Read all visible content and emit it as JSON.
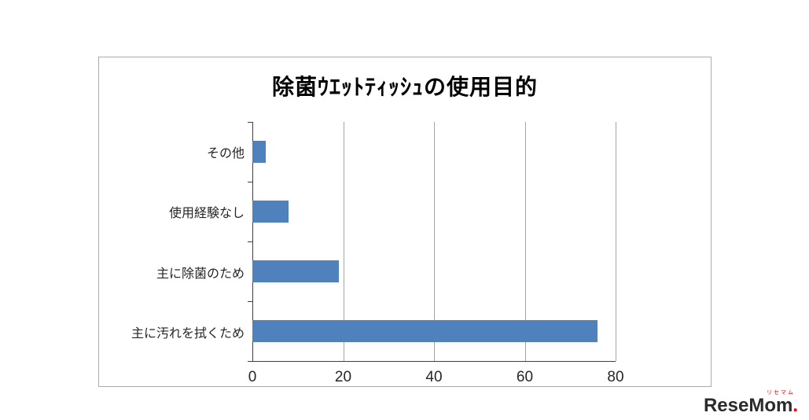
{
  "chart_data": {
    "type": "bar",
    "orientation": "horizontal",
    "title": "除菌ｳｴｯﾄﾃｨｯｼｭの使用目的",
    "categories": [
      "その他",
      "使用経験なし",
      "主に除菌のため",
      "主に汚れを拭くため"
    ],
    "values": [
      3,
      8,
      19,
      76
    ],
    "xlabel": "",
    "ylabel": "",
    "xlim": [
      0,
      80
    ],
    "xticks": [
      0,
      20,
      40,
      60,
      80
    ],
    "bar_color": "#4f81bd",
    "grid": true,
    "legend": "none"
  },
  "logo": {
    "sub": "リセマム",
    "text": "ReseMom",
    "dot": "."
  }
}
